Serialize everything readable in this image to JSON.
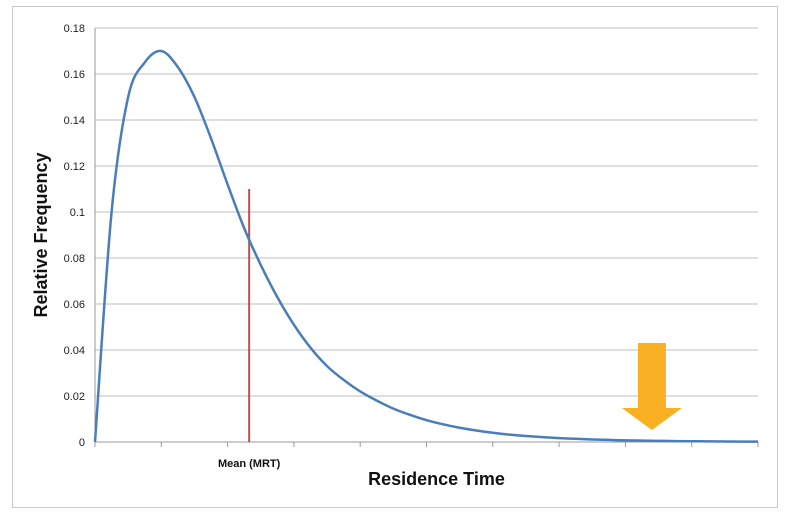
{
  "chart_data": {
    "type": "line",
    "title": "",
    "xlabel": "Residence Time",
    "ylabel": "Relative Frequency",
    "ylim": [
      0,
      0.18
    ],
    "yticks": [
      "0",
      "0.02",
      "0.04",
      "0.06",
      "0.08",
      "0.1",
      "0.12",
      "0.14",
      "0.16",
      "0.18"
    ],
    "grid": true,
    "legend": "none",
    "series": [
      {
        "color": "#4a7ebb",
        "x": [
          0,
          1,
          2,
          3,
          4,
          5,
          6,
          7,
          8,
          9,
          10,
          11,
          12,
          13,
          14,
          15,
          16,
          17,
          18,
          19,
          20,
          21,
          22,
          23,
          24,
          25,
          26,
          27,
          28,
          29,
          30,
          31,
          32,
          33,
          34,
          35,
          36,
          37,
          38,
          39,
          40
        ],
        "values": [
          0,
          0.1,
          0.15,
          0.165,
          0.17,
          0.163,
          0.15,
          0.132,
          0.112,
          0.093,
          0.077,
          0.063,
          0.051,
          0.041,
          0.033,
          0.027,
          0.022,
          0.018,
          0.0145,
          0.0118,
          0.0095,
          0.0077,
          0.0062,
          0.005,
          0.004,
          0.0032,
          0.0026,
          0.0021,
          0.0017,
          0.0014,
          0.0011,
          0.0009,
          0.0007,
          0.0006,
          0.0005,
          0.0004,
          0.00033,
          0.00027,
          0.00022,
          0.00018,
          0.00015
        ]
      }
    ],
    "annotations": [
      {
        "text": "Mean (MRT)",
        "x": 9.3,
        "y": 0.11,
        "color": "#c0504d"
      },
      {
        "arrow_color": "#f9b123",
        "x": 33.6,
        "direction": "down"
      }
    ],
    "xlim": [
      0,
      40
    ],
    "xtick_count": 10
  }
}
